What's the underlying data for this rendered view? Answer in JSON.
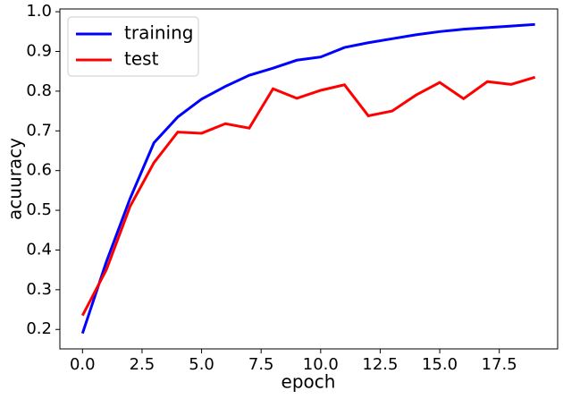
{
  "chart_data": {
    "type": "line",
    "x_label": "epoch",
    "y_label": "acuuracy",
    "x": [
      0,
      1,
      2,
      3,
      4,
      5,
      6,
      7,
      8,
      9,
      10,
      11,
      12,
      13,
      14,
      15,
      16,
      17,
      18,
      19
    ],
    "series": [
      {
        "name": "training",
        "color": "#0000ff",
        "values": [
          0.19,
          0.37,
          0.53,
          0.67,
          0.735,
          0.78,
          0.812,
          0.84,
          0.858,
          0.878,
          0.886,
          0.91,
          0.922,
          0.932,
          0.942,
          0.95,
          0.956,
          0.96,
          0.964,
          0.968
        ]
      },
      {
        "name": "test",
        "color": "#ff0000",
        "values": [
          0.235,
          0.35,
          0.51,
          0.62,
          0.697,
          0.694,
          0.718,
          0.707,
          0.806,
          0.782,
          0.802,
          0.816,
          0.738,
          0.75,
          0.79,
          0.822,
          0.781,
          0.824,
          0.817,
          0.835
        ]
      }
    ],
    "xlim": [
      -0.95,
      19.95
    ],
    "ylim": [
      0.151,
      1.007
    ],
    "xticks": [
      {
        "value": 0,
        "label": "0.0"
      },
      2.5,
      {
        "value": 5,
        "label": "5.0"
      },
      7.5,
      {
        "value": 10,
        "label": "10.0"
      },
      12.5,
      {
        "value": 15,
        "label": "15.0"
      },
      17.5
    ],
    "yticks": [
      0.2,
      0.3,
      0.4,
      0.5,
      0.6,
      0.7,
      0.8,
      0.9,
      {
        "value": 1,
        "label": "1.0"
      }
    ],
    "legend": "upper left",
    "grid": false
  }
}
